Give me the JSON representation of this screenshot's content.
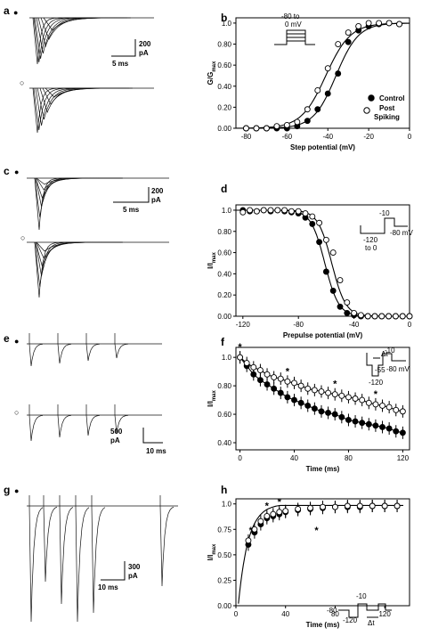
{
  "panel_labels": {
    "a": "a",
    "b": "b",
    "c": "c",
    "d": "d",
    "e": "e",
    "f": "f",
    "g": "g",
    "h": "h"
  },
  "markers": {
    "filled": "●",
    "open": "○"
  },
  "scalebars": {
    "a": {
      "y": "200",
      "y_unit": "pA",
      "x": "5 ms"
    },
    "c": {
      "y": "200",
      "y_unit": "pA",
      "x": "5 ms"
    },
    "e": {
      "y": "500",
      "y_unit": "pA",
      "x": "10 ms"
    },
    "g": {
      "y": "300",
      "y_unit": "pA",
      "x": "10 ms"
    }
  },
  "protocols": {
    "b": {
      "line1": "-80 to",
      "line2": "0 mV"
    },
    "d": {
      "top": "-10",
      "left": "-120",
      "left2": "to 0",
      "right": "-80 mV"
    },
    "f": {
      "dt": "Δt",
      "top": "-10",
      "mid": "-55",
      "low": "-120",
      "right": "-80 mV"
    },
    "h": {
      "top": "-10",
      "left": "-80",
      "low": "-120",
      "dt": "Δt"
    }
  },
  "legend_b": {
    "control": "Control",
    "post1": "Post",
    "post2": "Spiking"
  },
  "star": "*",
  "chart_data": [
    {
      "panel": "b",
      "type": "scatter",
      "xlabel": "Step potential (mV)",
      "ylabel": "G/G",
      "ylabel_sub": "max",
      "xlim": [
        -85,
        0
      ],
      "ylim": [
        0,
        1.05
      ],
      "xticks": [
        -80,
        -60,
        -40,
        -20,
        0
      ],
      "yticks": [
        0.0,
        0.2,
        0.4,
        0.6,
        0.8,
        1.0
      ],
      "series": [
        {
          "name": "Control",
          "marker": "filled",
          "x": [
            -80,
            -75,
            -70,
            -65,
            -60,
            -55,
            -50,
            -45,
            -40,
            -35,
            -30,
            -25,
            -20,
            -15,
            -10,
            -5
          ],
          "y": [
            0.0,
            0.0,
            0.0,
            0.0,
            0.0,
            0.02,
            0.07,
            0.18,
            0.33,
            0.52,
            0.82,
            0.93,
            0.97,
            0.99,
            1.0,
            0.99
          ],
          "fit": {
            "v_half": -36,
            "k": 5.5
          }
        },
        {
          "name": "Post Spiking",
          "marker": "open",
          "x": [
            -80,
            -75,
            -70,
            -65,
            -60,
            -55,
            -50,
            -45,
            -40,
            -35,
            -30,
            -25,
            -20,
            -15,
            -10,
            -5
          ],
          "y": [
            0.0,
            0.0,
            0.0,
            0.02,
            0.03,
            0.06,
            0.18,
            0.36,
            0.57,
            0.8,
            0.91,
            0.97,
            1.0,
            1.0,
            1.0,
            0.99
          ],
          "fit": {
            "v_half": -41,
            "k": 6
          }
        }
      ]
    },
    {
      "panel": "d",
      "type": "scatter",
      "xlabel": "Prepulse potential (mV)",
      "ylabel": "I/I",
      "ylabel_sub": "max",
      "xlim": [
        -125,
        0
      ],
      "ylim": [
        0,
        1.05
      ],
      "xticks": [
        -120,
        -80,
        -40,
        0
      ],
      "yticks": [
        0.0,
        0.2,
        0.4,
        0.6,
        0.8,
        1.0
      ],
      "series": [
        {
          "name": "Control",
          "marker": "filled",
          "x": [
            -120,
            -115,
            -110,
            -105,
            -100,
            -95,
            -90,
            -85,
            -80,
            -75,
            -70,
            -65,
            -60,
            -55,
            -50,
            -45,
            -40,
            -35,
            -30,
            -25,
            -20,
            -15,
            -10,
            -5,
            0
          ],
          "y": [
            1.0,
            0.99,
            0.99,
            1.0,
            0.99,
            1.0,
            0.99,
            0.98,
            0.97,
            0.93,
            0.87,
            0.7,
            0.42,
            0.24,
            0.09,
            0.03,
            0.01,
            0.0,
            0.0,
            0.0,
            0.0,
            0.0,
            0.0,
            0.0,
            0.0
          ],
          "fit": {
            "v_half": -61,
            "k": 5
          }
        },
        {
          "name": "Post Spiking",
          "marker": "open",
          "x": [
            -120,
            -115,
            -110,
            -105,
            -100,
            -95,
            -90,
            -85,
            -80,
            -75,
            -70,
            -65,
            -60,
            -55,
            -50,
            -45,
            -40,
            -35,
            -30,
            -25,
            -20,
            -15,
            -10,
            -5,
            0
          ],
          "y": [
            0.98,
            1.0,
            0.99,
            1.0,
            1.0,
            1.0,
            1.0,
            0.99,
            0.99,
            0.97,
            0.94,
            0.88,
            0.72,
            0.6,
            0.34,
            0.13,
            0.03,
            0.01,
            0.0,
            0.0,
            0.0,
            0.0,
            0.0,
            0.0,
            0.0
          ],
          "fit": {
            "v_half": -56,
            "k": 5
          }
        }
      ]
    },
    {
      "panel": "f",
      "type": "scatter",
      "xlabel": "Time (ms)",
      "ylabel": "I/I",
      "ylabel_sub": "max",
      "xlim": [
        -3,
        125
      ],
      "ylim": [
        0.35,
        1.07
      ],
      "xticks": [
        0,
        40,
        80,
        120
      ],
      "yticks": [
        0.4,
        0.6,
        0.8,
        1.0
      ],
      "series": [
        {
          "name": "Control",
          "marker": "filled",
          "x": [
            0,
            5,
            10,
            15,
            20,
            25,
            30,
            35,
            40,
            45,
            50,
            55,
            60,
            65,
            70,
            75,
            80,
            85,
            90,
            95,
            100,
            105,
            110,
            115,
            120
          ],
          "y": [
            1.0,
            0.94,
            0.88,
            0.84,
            0.81,
            0.78,
            0.75,
            0.72,
            0.7,
            0.68,
            0.66,
            0.64,
            0.62,
            0.61,
            0.6,
            0.58,
            0.56,
            0.55,
            0.54,
            0.53,
            0.52,
            0.51,
            0.5,
            0.48,
            0.47
          ]
        },
        {
          "name": "Post Spiking",
          "marker": "open",
          "x": [
            0,
            5,
            10,
            15,
            20,
            25,
            30,
            35,
            40,
            45,
            50,
            55,
            60,
            65,
            70,
            75,
            80,
            85,
            90,
            95,
            100,
            105,
            110,
            115,
            120
          ],
          "y": [
            1.0,
            0.96,
            0.93,
            0.91,
            0.88,
            0.86,
            0.85,
            0.83,
            0.82,
            0.8,
            0.78,
            0.77,
            0.76,
            0.75,
            0.74,
            0.73,
            0.72,
            0.71,
            0.7,
            0.68,
            0.67,
            0.66,
            0.65,
            0.63,
            0.62
          ]
        }
      ],
      "stars_x": [
        0,
        35,
        70,
        100
      ]
    },
    {
      "panel": "h",
      "type": "scatter",
      "xlabel": "Time (ms)",
      "ylabel": "I/I",
      "ylabel_sub": "max",
      "xlim": [
        0,
        140
      ],
      "ylim": [
        0,
        1.05
      ],
      "xticks": [
        0,
        40,
        80,
        120
      ],
      "yticks": [
        0.0,
        0.25,
        0.5,
        0.75,
        1.0
      ],
      "series": [
        {
          "name": "Control",
          "marker": "filled",
          "x": [
            10,
            15,
            20,
            25,
            30,
            35,
            40,
            50,
            60,
            70,
            80,
            90,
            100,
            110,
            120,
            130
          ],
          "y": [
            0.6,
            0.72,
            0.8,
            0.86,
            0.88,
            0.9,
            0.92,
            0.94,
            0.95,
            0.96,
            0.97,
            0.97,
            0.97,
            0.98,
            0.98,
            0.98
          ]
        },
        {
          "name": "Post Spiking",
          "marker": "open",
          "x": [
            10,
            15,
            20,
            25,
            30,
            35,
            40,
            50,
            60,
            70,
            80,
            90,
            100,
            110,
            120,
            130
          ],
          "y": [
            0.64,
            0.75,
            0.83,
            0.88,
            0.9,
            0.92,
            0.93,
            0.95,
            0.96,
            0.97,
            0.97,
            0.98,
            0.98,
            0.98,
            0.98,
            0.98
          ]
        }
      ],
      "fit": {
        "tau": 8
      },
      "stars_x": [
        12,
        25,
        35,
        65
      ]
    }
  ]
}
